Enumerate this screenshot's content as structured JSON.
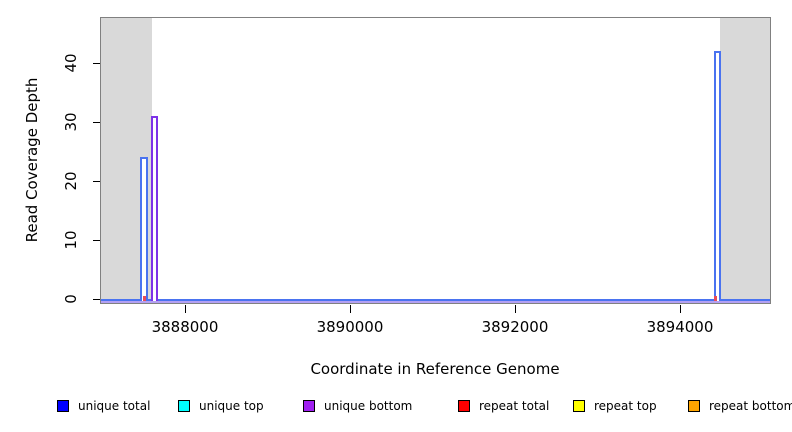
{
  "chart_data": {
    "type": "area",
    "title": "",
    "xlabel": "Coordinate in Reference Genome",
    "ylabel": "Read Coverage Depth",
    "xlim": [
      3886982,
      3895091
    ],
    "ylim": [
      0,
      47
    ],
    "grid": false,
    "legend_position": "bottom",
    "x_ticks": [
      {
        "value": 3888000,
        "label": "3888000"
      },
      {
        "value": 3890000,
        "label": "3890000"
      },
      {
        "value": 3892000,
        "label": "3892000"
      },
      {
        "value": 3894000,
        "label": "3894000"
      }
    ],
    "y_ticks": [
      {
        "value": 0,
        "label": "0"
      },
      {
        "value": 10,
        "label": "10"
      },
      {
        "value": 20,
        "label": "20"
      },
      {
        "value": 30,
        "label": "30"
      },
      {
        "value": 40,
        "label": "40"
      }
    ],
    "masked_regions": [
      {
        "x_start": 3886982,
        "x_end": 3887600,
        "fill": "#d9d9d9"
      },
      {
        "x_start": 3894485,
        "x_end": 3895091,
        "fill": "#d9d9d9"
      }
    ],
    "baseline": {
      "depth": 0,
      "line_color": "#4a73f0",
      "under_color": "#b3a0f2"
    },
    "spikes": [
      {
        "series": "unique total",
        "x_start": 3887455,
        "x_end": 3887552,
        "depth": 24,
        "line_color": "#4a73f0"
      },
      {
        "series": "unique bottom",
        "x_start": 3887590,
        "x_end": 3887675,
        "depth": 31,
        "line_color": "#7d32e8"
      },
      {
        "series": "unique total",
        "x_start": 3894410,
        "x_end": 3894495,
        "depth": 42,
        "line_color": "#4a73f0"
      },
      {
        "series": "repeat total",
        "x_start": 3887490,
        "x_end": 3887527,
        "depth": 0.5,
        "line_color": "#e84b5a"
      },
      {
        "series": "repeat total",
        "x_start": 3894412,
        "x_end": 3894448,
        "depth": 0.5,
        "line_color": "#e84b5a"
      }
    ],
    "legend": [
      {
        "label": "unique total",
        "color": "#0000ff"
      },
      {
        "label": "unique top",
        "color": "#00ffff"
      },
      {
        "label": "unique bottom",
        "color": "#a020f0"
      },
      {
        "label": "repeat total",
        "color": "#ff0000"
      },
      {
        "label": "repeat top",
        "color": "#ffff00"
      },
      {
        "label": "repeat bottom",
        "color": "#ffa500"
      }
    ]
  }
}
